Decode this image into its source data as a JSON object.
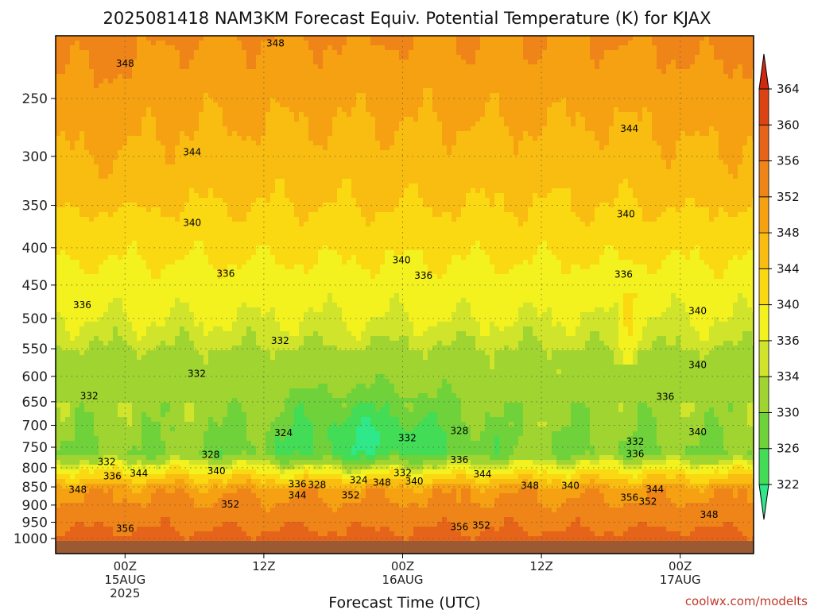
{
  "title": "2025081418 NAM3KM Forecast Equiv. Potential Temperature (K) for KJAX",
  "watermark": "coolwx.com/modelts",
  "chart_data": {
    "type": "heatmap",
    "title": "2025081418 NAM3KM Forecast Equiv. Potential Temperature (K) for KJAX",
    "xlabel": "Forecast Time (UTC)",
    "ylabel": "",
    "x_range_hours_since_init": [
      0,
      60
    ],
    "y_axis": {
      "unit": "hPa",
      "scale": "log-pressure",
      "range": [
        1000,
        200
      ],
      "ticks": [
        250,
        300,
        350,
        400,
        450,
        500,
        550,
        600,
        650,
        700,
        750,
        800,
        850,
        900,
        950,
        1000
      ]
    },
    "x_ticks": [
      {
        "hour": 6,
        "lines": [
          "00Z",
          "15AUG",
          "2025"
        ]
      },
      {
        "hour": 18,
        "lines": [
          "12Z"
        ]
      },
      {
        "hour": 30,
        "lines": [
          "00Z",
          "16AUG"
        ]
      },
      {
        "hour": 42,
        "lines": [
          "12Z"
        ]
      },
      {
        "hour": 54,
        "lines": [
          "00Z",
          "17AUG"
        ]
      }
    ],
    "colorbar": {
      "levels": [
        322,
        326,
        330,
        334,
        336,
        340,
        344,
        348,
        352,
        356,
        360,
        364
      ],
      "colors": [
        "#2ee88a",
        "#42dc56",
        "#6fd23a",
        "#9fd431",
        "#cfe42a",
        "#f3f11e",
        "#fad812",
        "#f8bd10",
        "#f5a112",
        "#ef8418",
        "#e5641a",
        "#db4214",
        "#cf2a0e"
      ]
    },
    "contour_labels": [
      {
        "h": 19.0,
        "p": 210,
        "v": "348"
      },
      {
        "h": 6.0,
        "p": 224,
        "v": "348"
      },
      {
        "h": 49.6,
        "p": 275,
        "v": "344"
      },
      {
        "h": 11.8,
        "p": 296,
        "v": "344"
      },
      {
        "h": 49.3,
        "p": 360,
        "v": "340"
      },
      {
        "h": 11.8,
        "p": 370,
        "v": "340"
      },
      {
        "h": 29.9,
        "p": 416,
        "v": "340"
      },
      {
        "h": 49.1,
        "p": 435,
        "v": "336"
      },
      {
        "h": 31.8,
        "p": 437,
        "v": "336"
      },
      {
        "h": 14.7,
        "p": 434,
        "v": "336"
      },
      {
        "h": 2.3,
        "p": 479,
        "v": "336"
      },
      {
        "h": 55.5,
        "p": 488,
        "v": "340"
      },
      {
        "h": 19.4,
        "p": 536,
        "v": "332"
      },
      {
        "h": 55.5,
        "p": 579,
        "v": "340"
      },
      {
        "h": 12.2,
        "p": 595,
        "v": "332"
      },
      {
        "h": 2.9,
        "p": 638,
        "v": "332"
      },
      {
        "h": 52.7,
        "p": 640,
        "v": "336"
      },
      {
        "h": 55.5,
        "p": 715,
        "v": "340"
      },
      {
        "h": 19.7,
        "p": 717,
        "v": "324"
      },
      {
        "h": 34.9,
        "p": 712,
        "v": "328"
      },
      {
        "h": 30.4,
        "p": 729,
        "v": "332"
      },
      {
        "h": 50.1,
        "p": 737,
        "v": "332"
      },
      {
        "h": 50.1,
        "p": 766,
        "v": "336"
      },
      {
        "h": 13.4,
        "p": 768,
        "v": "328"
      },
      {
        "h": 4.4,
        "p": 785,
        "v": "332"
      },
      {
        "h": 34.9,
        "p": 781,
        "v": "336"
      },
      {
        "h": 13.9,
        "p": 808,
        "v": "340"
      },
      {
        "h": 30.0,
        "p": 813,
        "v": "332"
      },
      {
        "h": 4.9,
        "p": 822,
        "v": "336"
      },
      {
        "h": 7.2,
        "p": 815,
        "v": "344"
      },
      {
        "h": 36.9,
        "p": 817,
        "v": "344"
      },
      {
        "h": 26.2,
        "p": 832,
        "v": "324"
      },
      {
        "h": 20.9,
        "p": 843,
        "v": "336"
      },
      {
        "h": 22.6,
        "p": 845,
        "v": "328"
      },
      {
        "h": 28.2,
        "p": 838,
        "v": "348"
      },
      {
        "h": 31.0,
        "p": 835,
        "v": "340"
      },
      {
        "h": 41.0,
        "p": 847,
        "v": "348"
      },
      {
        "h": 44.5,
        "p": 847,
        "v": "340"
      },
      {
        "h": 1.9,
        "p": 857,
        "v": "348"
      },
      {
        "h": 20.9,
        "p": 872,
        "v": "344"
      },
      {
        "h": 25.5,
        "p": 873,
        "v": "352"
      },
      {
        "h": 51.8,
        "p": 856,
        "v": "344"
      },
      {
        "h": 49.6,
        "p": 879,
        "v": "356"
      },
      {
        "h": 51.2,
        "p": 890,
        "v": "352"
      },
      {
        "h": 15.1,
        "p": 898,
        "v": "352"
      },
      {
        "h": 56.5,
        "p": 928,
        "v": "348"
      },
      {
        "h": 34.9,
        "p": 964,
        "v": "356"
      },
      {
        "h": 36.8,
        "p": 960,
        "v": "352"
      },
      {
        "h": 6.0,
        "p": 969,
        "v": "356"
      }
    ]
  }
}
